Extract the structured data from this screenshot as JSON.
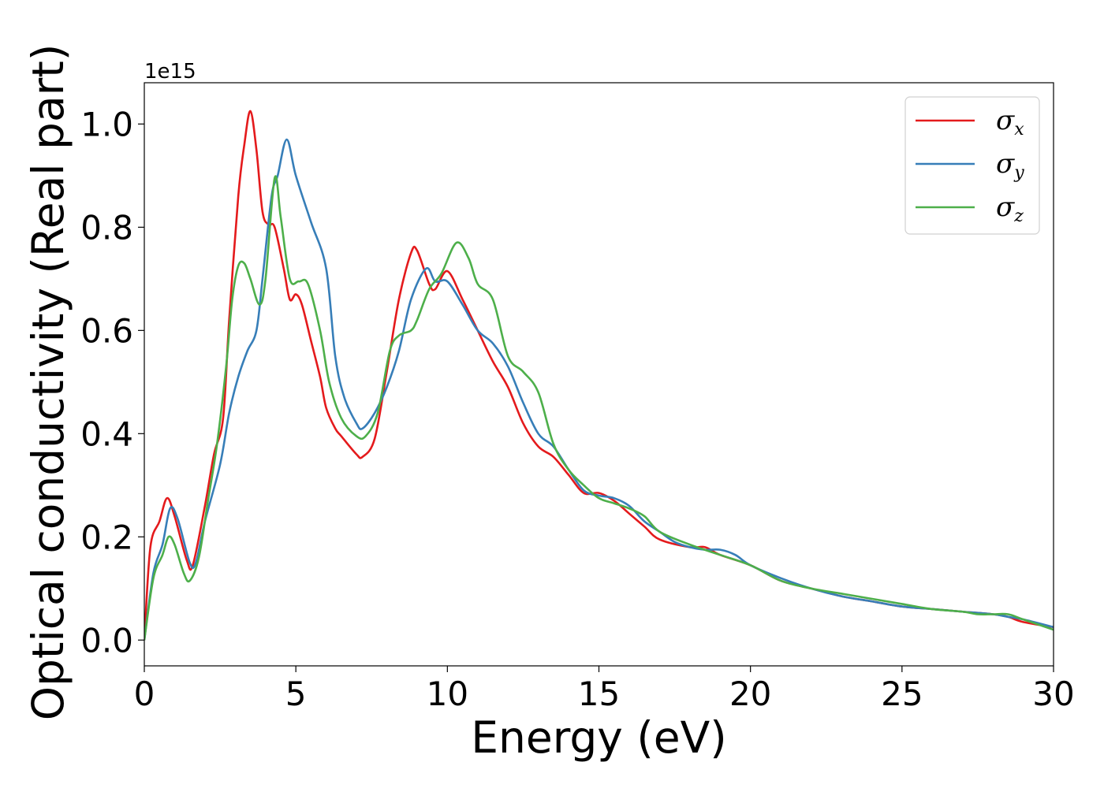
{
  "chart_data": {
    "type": "line",
    "title": "",
    "xlabel": "Energy (eV)",
    "ylabel": "Optical conductivity (Real part)",
    "y_offset_label": "1e15",
    "xlim": [
      0,
      30
    ],
    "ylim": [
      -0.05,
      1.08
    ],
    "xticks": [
      0,
      5,
      10,
      15,
      20,
      25,
      30
    ],
    "xtick_labels": [
      "0",
      "5",
      "10",
      "15",
      "20",
      "25",
      "30"
    ],
    "yticks": [
      0.0,
      0.2,
      0.4,
      0.6,
      0.8,
      1.0
    ],
    "ytick_labels": [
      "0.0",
      "0.2",
      "0.4",
      "0.6",
      "0.8",
      "1.0"
    ],
    "grid": false,
    "legend_position": "top-right",
    "series": [
      {
        "name": "σx",
        "legend_symbol": "σ",
        "legend_sub": "x",
        "color": "#e41a1c",
        "x": [
          0,
          0.2,
          0.5,
          0.75,
          1.0,
          1.4,
          1.6,
          2.0,
          2.3,
          2.6,
          2.8,
          3.1,
          3.3,
          3.5,
          3.7,
          3.9,
          4.1,
          4.3,
          4.6,
          4.8,
          5.0,
          5.2,
          5.5,
          5.8,
          6.0,
          6.3,
          6.5,
          7.0,
          7.2,
          7.6,
          8.0,
          8.4,
          8.8,
          9.0,
          9.4,
          9.6,
          10.0,
          10.5,
          11.0,
          11.5,
          12.0,
          12.5,
          13.0,
          13.5,
          14.0,
          14.5,
          15.0,
          15.5,
          16.0,
          16.5,
          17.0,
          18.0,
          18.5,
          19.0,
          20.0,
          21.0,
          22.0,
          23.0,
          24.0,
          25.0,
          26.0,
          27.0,
          28.0,
          28.5,
          29.0,
          30.0
        ],
        "y": [
          0.0,
          0.18,
          0.23,
          0.275,
          0.24,
          0.155,
          0.145,
          0.26,
          0.36,
          0.43,
          0.62,
          0.86,
          0.96,
          1.025,
          0.95,
          0.83,
          0.805,
          0.8,
          0.72,
          0.66,
          0.67,
          0.65,
          0.58,
          0.51,
          0.45,
          0.41,
          0.395,
          0.36,
          0.355,
          0.39,
          0.52,
          0.66,
          0.75,
          0.755,
          0.69,
          0.68,
          0.715,
          0.66,
          0.6,
          0.54,
          0.49,
          0.42,
          0.375,
          0.355,
          0.32,
          0.285,
          0.285,
          0.27,
          0.245,
          0.22,
          0.195,
          0.18,
          0.18,
          0.165,
          0.145,
          0.115,
          0.1,
          0.085,
          0.075,
          0.065,
          0.06,
          0.055,
          0.05,
          0.045,
          0.035,
          0.025
        ]
      },
      {
        "name": "σy",
        "legend_symbol": "σ",
        "legend_sub": "y",
        "color": "#377eb8",
        "x": [
          0,
          0.3,
          0.6,
          0.85,
          1.1,
          1.5,
          1.7,
          2.0,
          2.5,
          2.8,
          3.1,
          3.4,
          3.7,
          3.9,
          4.2,
          4.4,
          4.7,
          5.0,
          5.5,
          6.0,
          6.3,
          6.6,
          7.0,
          7.2,
          7.6,
          8.0,
          8.4,
          8.8,
          9.3,
          9.6,
          10.0,
          10.5,
          11.0,
          11.5,
          12.0,
          12.5,
          13.0,
          13.5,
          14.0,
          14.5,
          15.0,
          15.5,
          16.0,
          16.5,
          17.0,
          17.5,
          18.0,
          18.5,
          19.0,
          19.5,
          20.0,
          21.0,
          22.0,
          23.0,
          24.0,
          25.0,
          26.0,
          27.0,
          28.0,
          28.5,
          29.0,
          30.0
        ],
        "y": [
          0.0,
          0.13,
          0.185,
          0.255,
          0.235,
          0.15,
          0.15,
          0.23,
          0.34,
          0.44,
          0.51,
          0.56,
          0.6,
          0.7,
          0.86,
          0.9,
          0.97,
          0.9,
          0.81,
          0.72,
          0.55,
          0.47,
          0.42,
          0.41,
          0.44,
          0.49,
          0.56,
          0.66,
          0.72,
          0.695,
          0.695,
          0.65,
          0.6,
          0.575,
          0.53,
          0.46,
          0.4,
          0.375,
          0.33,
          0.29,
          0.28,
          0.275,
          0.26,
          0.23,
          0.21,
          0.19,
          0.18,
          0.175,
          0.175,
          0.165,
          0.145,
          0.12,
          0.1,
          0.085,
          0.075,
          0.065,
          0.06,
          0.055,
          0.05,
          0.045,
          0.04,
          0.025
        ]
      },
      {
        "name": "σz",
        "legend_symbol": "σ",
        "legend_sub": "z",
        "color": "#4daf4a",
        "x": [
          0,
          0.3,
          0.6,
          0.8,
          1.0,
          1.3,
          1.5,
          1.8,
          2.1,
          2.4,
          2.7,
          2.9,
          3.1,
          3.3,
          3.5,
          3.8,
          4.0,
          4.3,
          4.5,
          4.8,
          5.1,
          5.4,
          5.8,
          6.1,
          6.5,
          7.0,
          7.3,
          7.7,
          8.1,
          8.4,
          8.8,
          9.0,
          9.4,
          9.8,
          10.3,
          10.7,
          11.0,
          11.5,
          12.0,
          12.5,
          13.0,
          13.5,
          14.0,
          14.5,
          15.0,
          15.5,
          16.0,
          16.5,
          17.0,
          18.0,
          19.0,
          20.0,
          21.0,
          22.0,
          23.0,
          24.0,
          25.0,
          26.0,
          27.0,
          27.5,
          28.0,
          28.5,
          29.0,
          30.0
        ],
        "y": [
          0.0,
          0.12,
          0.165,
          0.2,
          0.185,
          0.13,
          0.115,
          0.16,
          0.27,
          0.38,
          0.53,
          0.66,
          0.725,
          0.73,
          0.7,
          0.65,
          0.7,
          0.895,
          0.82,
          0.7,
          0.695,
          0.69,
          0.6,
          0.5,
          0.43,
          0.395,
          0.395,
          0.44,
          0.56,
          0.59,
          0.6,
          0.62,
          0.68,
          0.71,
          0.77,
          0.74,
          0.69,
          0.66,
          0.55,
          0.52,
          0.48,
          0.38,
          0.33,
          0.3,
          0.275,
          0.265,
          0.255,
          0.24,
          0.21,
          0.185,
          0.165,
          0.145,
          0.115,
          0.1,
          0.09,
          0.08,
          0.07,
          0.06,
          0.055,
          0.05,
          0.05,
          0.05,
          0.04,
          0.02
        ]
      }
    ]
  }
}
